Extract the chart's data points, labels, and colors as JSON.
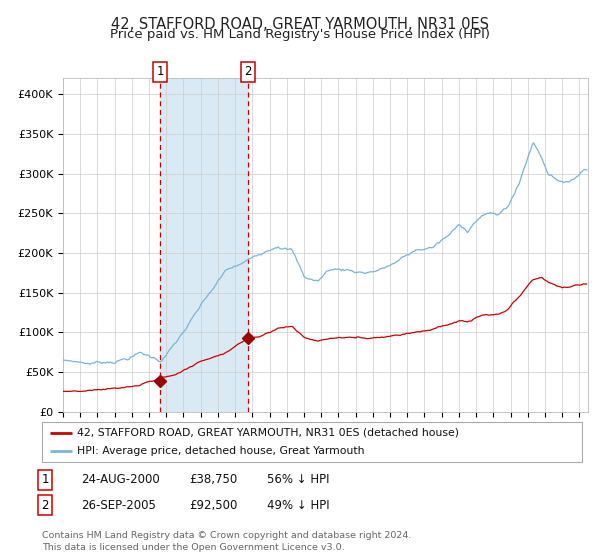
{
  "title": "42, STAFFORD ROAD, GREAT YARMOUTH, NR31 0ES",
  "subtitle": "Price paid vs. HM Land Registry's House Price Index (HPI)",
  "ylim": [
    0,
    420000
  ],
  "yticks": [
    0,
    50000,
    100000,
    150000,
    200000,
    250000,
    300000,
    350000,
    400000
  ],
  "ytick_labels": [
    "£0",
    "£50K",
    "£100K",
    "£150K",
    "£200K",
    "£250K",
    "£300K",
    "£350K",
    "£400K"
  ],
  "hpi_color": "#7ab4d8",
  "red_color": "#cc0000",
  "shade_color": "#daeaf5",
  "vline_color": "#cc0000",
  "marker_color": "#990000",
  "purchase1_date": 2000.64,
  "purchase1_price": 38750,
  "purchase2_date": 2005.73,
  "purchase2_price": 92500,
  "legend_entry1": "42, STAFFORD ROAD, GREAT YARMOUTH, NR31 0ES (detached house)",
  "legend_entry2": "HPI: Average price, detached house, Great Yarmouth",
  "table_row1": [
    "1",
    "24-AUG-2000",
    "£38,750",
    "56% ↓ HPI"
  ],
  "table_row2": [
    "2",
    "26-SEP-2005",
    "£92,500",
    "49% ↓ HPI"
  ],
  "footnote": "Contains HM Land Registry data © Crown copyright and database right 2024.\nThis data is licensed under the Open Government Licence v3.0.",
  "title_fontsize": 10.5,
  "subtitle_fontsize": 9.5,
  "tick_fontsize": 8,
  "background_color": "#ffffff",
  "grid_color": "#cccccc"
}
